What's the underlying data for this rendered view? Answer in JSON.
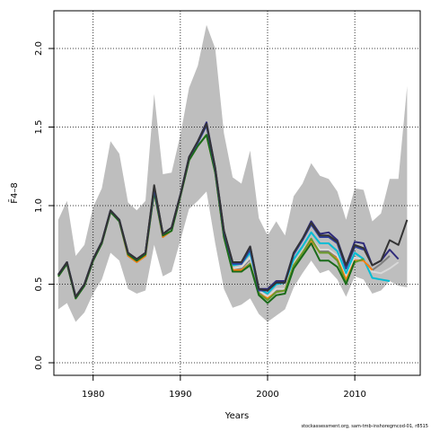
{
  "chart_data": {
    "type": "line",
    "xlabel": "Years",
    "ylabel": "F̄4–8",
    "xlim": [
      1975.5,
      2017.5
    ],
    "ylim": [
      -0.08,
      2.24
    ],
    "xticks": [
      1980,
      1990,
      2000,
      2010
    ],
    "yticks": [
      0.0,
      0.5,
      1.0,
      1.5,
      2.0
    ],
    "ytick_labels": [
      "0.0",
      "0.5",
      "1.0",
      "1.5",
      "2.0"
    ],
    "grid": true,
    "band": {
      "x": [
        1976,
        1977,
        1978,
        1979,
        1980,
        1981,
        1982,
        1983,
        1984,
        1985,
        1986,
        1987,
        1988,
        1989,
        1990,
        1991,
        1992,
        1993,
        1994,
        1995,
        1996,
        1997,
        1998,
        1999,
        2000,
        2001,
        2002,
        2003,
        2004,
        2005,
        2006,
        2007,
        2008,
        2009,
        2010,
        2011,
        2012,
        2013,
        2014,
        2015,
        2016
      ],
      "upper": [
        0.91,
        1.03,
        0.68,
        0.75,
        0.99,
        1.11,
        1.41,
        1.33,
        1.02,
        0.97,
        1.03,
        1.71,
        1.2,
        1.21,
        1.45,
        1.75,
        1.89,
        2.15,
        2.0,
        1.46,
        1.18,
        1.14,
        1.35,
        0.92,
        0.81,
        0.9,
        0.81,
        1.06,
        1.14,
        1.27,
        1.19,
        1.17,
        1.09,
        0.91,
        1.11,
        1.1,
        0.9,
        0.95,
        1.17,
        1.17,
        1.76
      ],
      "lower": [
        0.34,
        0.38,
        0.26,
        0.32,
        0.44,
        0.53,
        0.7,
        0.65,
        0.47,
        0.44,
        0.46,
        0.75,
        0.55,
        0.58,
        0.78,
        0.98,
        1.03,
        1.09,
        0.76,
        0.47,
        0.35,
        0.37,
        0.41,
        0.31,
        0.26,
        0.3,
        0.34,
        0.48,
        0.57,
        0.65,
        0.57,
        0.59,
        0.53,
        0.42,
        0.55,
        0.53,
        0.44,
        0.46,
        0.52,
        0.49,
        0.48
      ]
    },
    "series": [
      {
        "color": "#7f7f7f",
        "x": [
          1976,
          1977,
          1978,
          1979,
          1980,
          1981,
          1982,
          1983,
          1984,
          1985,
          1986,
          1987,
          1988,
          1989,
          1990,
          1991,
          1992,
          1993,
          1994,
          1995,
          1996,
          1997,
          1998,
          1999,
          2000,
          2001,
          2002,
          2003,
          2004,
          2005,
          2006,
          2007,
          2008,
          2009,
          2010,
          2011,
          2012,
          2013,
          2014
        ],
        "values": [
          0.56,
          0.64,
          0.42,
          0.5,
          0.66,
          0.77,
          0.97,
          0.91,
          0.7,
          0.66,
          0.7,
          1.1,
          0.82,
          0.86,
          1.07,
          1.3,
          1.39,
          1.45,
          1.22,
          0.82,
          0.6,
          0.6,
          0.66,
          0.45,
          0.4,
          0.46,
          0.46,
          0.62,
          0.7,
          0.79,
          0.71,
          0.71,
          0.67,
          0.54,
          0.67,
          0.66,
          0.59,
          0.63,
          0.68
        ]
      },
      {
        "color": "#d9d9d9",
        "x": [
          1976,
          1977,
          1978,
          1979,
          1980,
          1981,
          1982,
          1983,
          1984,
          1985,
          1986,
          1987,
          1988,
          1989,
          1990,
          1991,
          1992,
          1993,
          1994,
          1995,
          1996,
          1997,
          1998,
          1999,
          2000,
          2001,
          2002,
          2003,
          2004,
          2005,
          2006,
          2007,
          2008,
          2009,
          2010,
          2011,
          2012,
          2013,
          2014,
          2015
        ],
        "values": [
          0.56,
          0.64,
          0.42,
          0.5,
          0.66,
          0.77,
          0.97,
          0.91,
          0.7,
          0.66,
          0.7,
          1.1,
          0.82,
          0.86,
          1.07,
          1.3,
          1.39,
          1.45,
          1.22,
          0.82,
          0.6,
          0.61,
          0.67,
          0.46,
          0.42,
          0.47,
          0.47,
          0.63,
          0.71,
          0.79,
          0.72,
          0.72,
          0.68,
          0.55,
          0.67,
          0.66,
          0.58,
          0.57,
          0.6,
          0.64
        ]
      },
      {
        "color": "#00bcd4",
        "x": [
          1976,
          1977,
          1978,
          1979,
          1980,
          1981,
          1982,
          1983,
          1984,
          1985,
          1986,
          1987,
          1988,
          1989,
          1990,
          1991,
          1992,
          1993,
          1994,
          1995,
          1996,
          1997,
          1998,
          1999,
          2000,
          2001,
          2002,
          2003,
          2004,
          2005,
          2006,
          2007,
          2008,
          2009,
          2010,
          2011,
          2012,
          2013,
          2014
        ],
        "values": [
          0.55,
          0.63,
          0.41,
          0.49,
          0.65,
          0.76,
          0.96,
          0.9,
          0.68,
          0.64,
          0.68,
          1.09,
          0.8,
          0.84,
          1.06,
          1.29,
          1.38,
          1.45,
          1.22,
          0.82,
          0.62,
          0.63,
          0.7,
          0.47,
          0.44,
          0.5,
          0.51,
          0.66,
          0.74,
          0.83,
          0.76,
          0.76,
          0.71,
          0.57,
          0.7,
          0.66,
          0.54,
          0.53,
          0.52
        ]
      },
      {
        "color": "#ff7f0e",
        "x": [
          1976,
          1977,
          1978,
          1979,
          1980,
          1981,
          1982,
          1983,
          1984,
          1985,
          1986,
          1987,
          1988,
          1989,
          1990,
          1991,
          1992,
          1993,
          1994,
          1995,
          1996,
          1997,
          1998,
          1999,
          2000,
          2001,
          2002,
          2003,
          2004,
          2005,
          2006,
          2007,
          2008,
          2009,
          2010,
          2011,
          2012
        ],
        "values": [
          0.55,
          0.63,
          0.41,
          0.49,
          0.65,
          0.76,
          0.96,
          0.9,
          0.68,
          0.64,
          0.68,
          1.09,
          0.8,
          0.84,
          1.06,
          1.29,
          1.38,
          1.45,
          1.21,
          0.8,
          0.59,
          0.59,
          0.63,
          0.44,
          0.41,
          0.45,
          0.46,
          0.62,
          0.7,
          0.78,
          0.7,
          0.7,
          0.66,
          0.53,
          0.65,
          0.65,
          0.59
        ]
      },
      {
        "color": "#6a9a2a",
        "x": [
          1976,
          1977,
          1978,
          1979,
          1980,
          1981,
          1982,
          1983,
          1984,
          1985,
          1986,
          1987,
          1988,
          1989,
          1990,
          1991,
          1992,
          1993,
          1994,
          1995,
          1996,
          1997,
          1998,
          1999,
          2000,
          2001,
          2002,
          2003,
          2004,
          2005,
          2006,
          2007,
          2008,
          2009,
          2010,
          2011
        ],
        "values": [
          0.55,
          0.63,
          0.41,
          0.49,
          0.65,
          0.76,
          0.96,
          0.9,
          0.69,
          0.65,
          0.69,
          1.09,
          0.81,
          0.84,
          1.06,
          1.29,
          1.38,
          1.45,
          1.21,
          0.8,
          0.58,
          0.58,
          0.63,
          0.44,
          0.4,
          0.45,
          0.46,
          0.62,
          0.7,
          0.79,
          0.7,
          0.7,
          0.65,
          0.51,
          0.64,
          0.66
        ]
      },
      {
        "color": "#1a6b1a",
        "x": [
          1976,
          1977,
          1978,
          1979,
          1980,
          1981,
          1982,
          1983,
          1984,
          1985,
          1986,
          1987,
          1988,
          1989,
          1990,
          1991,
          1992,
          1993,
          1994,
          1995,
          1996,
          1997,
          1998,
          1999,
          2000,
          2001,
          2002,
          2003,
          2004,
          2005,
          2006,
          2007,
          2008,
          2009,
          2010
        ],
        "values": [
          0.55,
          0.63,
          0.41,
          0.49,
          0.65,
          0.76,
          0.96,
          0.9,
          0.69,
          0.65,
          0.69,
          1.09,
          0.81,
          0.84,
          1.06,
          1.29,
          1.38,
          1.45,
          1.21,
          0.8,
          0.58,
          0.58,
          0.62,
          0.43,
          0.38,
          0.43,
          0.44,
          0.6,
          0.68,
          0.76,
          0.65,
          0.65,
          0.61,
          0.5,
          0.65
        ]
      },
      {
        "color": "#2e2a7a",
        "x": [
          1976,
          1977,
          1978,
          1979,
          1980,
          1981,
          1982,
          1983,
          1984,
          1985,
          1986,
          1987,
          1988,
          1989,
          1990,
          1991,
          1992,
          1993,
          1994,
          1995,
          1996,
          1997,
          1998,
          1999,
          2000,
          2001,
          2002,
          2003,
          2004,
          2005,
          2006,
          2007,
          2008,
          2009,
          2010,
          2011,
          2012,
          2013,
          2014,
          2015
        ],
        "values": [
          0.56,
          0.64,
          0.42,
          0.5,
          0.66,
          0.77,
          0.97,
          0.91,
          0.7,
          0.66,
          0.7,
          1.12,
          0.82,
          0.86,
          1.07,
          1.31,
          1.41,
          1.53,
          1.24,
          0.84,
          0.64,
          0.64,
          0.74,
          0.47,
          0.47,
          0.52,
          0.52,
          0.7,
          0.79,
          0.9,
          0.82,
          0.83,
          0.78,
          0.62,
          0.77,
          0.76,
          0.62,
          0.65,
          0.72,
          0.66
        ]
      },
      {
        "color": "#2f3f9e",
        "x": [
          1976,
          1977,
          1978,
          1979,
          1980,
          1981,
          1982,
          1983,
          1984,
          1985,
          1986,
          1987,
          1988,
          1989,
          1990,
          1991,
          1992,
          1993,
          1994,
          1995,
          1996,
          1997,
          1998,
          1999,
          2000,
          2001,
          2002,
          2003,
          2004,
          2005,
          2006,
          2007,
          2008,
          2009,
          2010,
          2011
        ],
        "values": [
          0.56,
          0.64,
          0.42,
          0.5,
          0.66,
          0.77,
          0.97,
          0.91,
          0.7,
          0.66,
          0.7,
          1.11,
          0.82,
          0.86,
          1.07,
          1.31,
          1.4,
          1.51,
          1.23,
          0.83,
          0.63,
          0.63,
          0.72,
          0.46,
          0.46,
          0.51,
          0.51,
          0.69,
          0.78,
          0.88,
          0.8,
          0.8,
          0.76,
          0.6,
          0.74,
          0.72
        ]
      },
      {
        "color": "#333333",
        "x": [
          1976,
          1977,
          1978,
          1979,
          1980,
          1981,
          1982,
          1983,
          1984,
          1985,
          1986,
          1987,
          1988,
          1989,
          1990,
          1991,
          1992,
          1993,
          1994,
          1995,
          1996,
          1997,
          1998,
          1999,
          2000,
          2001,
          2002,
          2003,
          2004,
          2005,
          2006,
          2007,
          2008,
          2009,
          2010,
          2011,
          2012,
          2013,
          2014,
          2015,
          2016
        ],
        "values": [
          0.56,
          0.64,
          0.42,
          0.5,
          0.66,
          0.77,
          0.97,
          0.91,
          0.7,
          0.66,
          0.7,
          1.13,
          0.82,
          0.86,
          1.07,
          1.31,
          1.41,
          1.52,
          1.24,
          0.84,
          0.64,
          0.64,
          0.74,
          0.47,
          0.46,
          0.51,
          0.51,
          0.7,
          0.79,
          0.89,
          0.81,
          0.81,
          0.77,
          0.62,
          0.75,
          0.73,
          0.62,
          0.65,
          0.78,
          0.75,
          0.91
        ]
      }
    ]
  },
  "credit": "stockassessment.org, sam-tmb-inshoregmcod-01, r8515"
}
